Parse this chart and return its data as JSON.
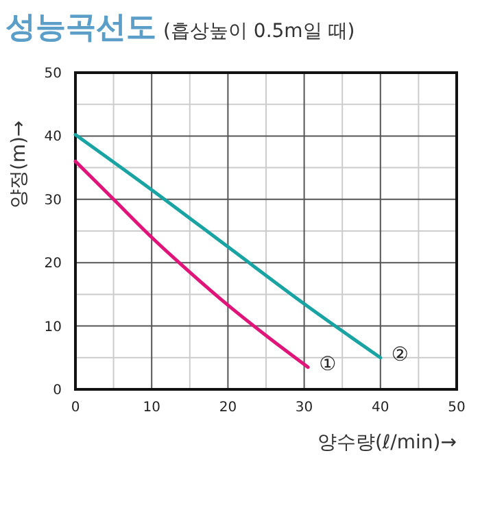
{
  "chart_data": {
    "type": "line",
    "title": "성능곡선도",
    "subtitle": "(흡상높이 0.5m일 때)",
    "xlabel": "양수량(ℓ/min)→",
    "ylabel": "양정(m)→",
    "series": [
      {
        "color": "#e0157a",
        "x": [
          0,
          5,
          10,
          15,
          20,
          25,
          30.5
        ],
        "values": [
          36,
          30,
          24,
          18.5,
          13.3,
          8.5,
          3.5
        ]
      },
      {
        "color": "#1aa3a3",
        "x": [
          0,
          10,
          20,
          30,
          40
        ],
        "values": [
          40.2,
          31.5,
          22.5,
          13.5,
          5
        ]
      }
    ],
    "xlim": [
      0,
      50
    ],
    "xticks": [
      0,
      10,
      20,
      30,
      40,
      50
    ],
    "ylim": [
      0,
      50
    ],
    "yticks": [
      0,
      10,
      20,
      30,
      40,
      50
    ],
    "grid": true,
    "marker": "none",
    "line_style": "solid",
    "annotations": [
      "①",
      "②"
    ]
  }
}
